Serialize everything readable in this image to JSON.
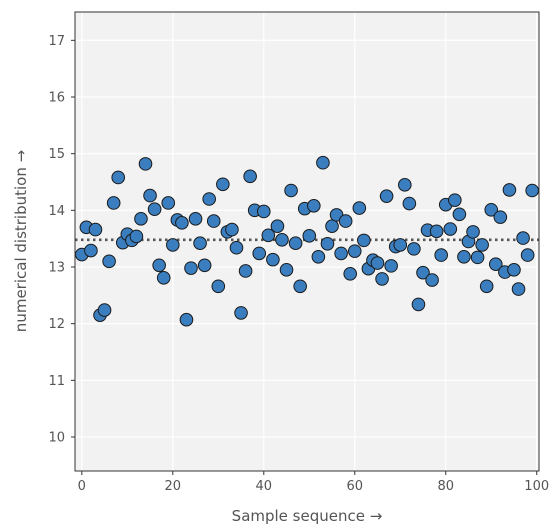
{
  "chart_data": {
    "type": "scatter",
    "title": "",
    "xlabel": "Sample sequence →",
    "ylabel": "numerical distribution →",
    "xlim": [
      -1.5,
      100.5
    ],
    "ylim": [
      9.4,
      17.5
    ],
    "xticks": [
      0,
      20,
      40,
      60,
      80,
      100
    ],
    "yticks": [
      10,
      11,
      12,
      13,
      14,
      15,
      16,
      17
    ],
    "grid": true,
    "legend": "none",
    "reference_line": {
      "y": 13.48,
      "style": "dotted",
      "color": "#555555"
    },
    "marker_color": "#3a7ebf",
    "marker_edge_color": "#1a1a1a",
    "background_color": "#f2f2f2",
    "points": [
      [
        0,
        13.22
      ],
      [
        1,
        13.7
      ],
      [
        2,
        13.29
      ],
      [
        3,
        13.66
      ],
      [
        4,
        12.15
      ],
      [
        5,
        12.24
      ],
      [
        6,
        13.1
      ],
      [
        7,
        14.13
      ],
      [
        8,
        14.58
      ],
      [
        9,
        13.43
      ],
      [
        10,
        13.58
      ],
      [
        11,
        13.47
      ],
      [
        12,
        13.54
      ],
      [
        13,
        13.85
      ],
      [
        14,
        14.82
      ],
      [
        15,
        14.26
      ],
      [
        16,
        14.02
      ],
      [
        17,
        13.03
      ],
      [
        18,
        12.81
      ],
      [
        19,
        14.13
      ],
      [
        20,
        13.39
      ],
      [
        21,
        13.83
      ],
      [
        22,
        13.78
      ],
      [
        23,
        12.07
      ],
      [
        24,
        12.98
      ],
      [
        25,
        13.85
      ],
      [
        26,
        13.42
      ],
      [
        27,
        13.03
      ],
      [
        28,
        14.2
      ],
      [
        29,
        13.81
      ],
      [
        30,
        12.66
      ],
      [
        31,
        14.46
      ],
      [
        32,
        13.62
      ],
      [
        33,
        13.66
      ],
      [
        34,
        13.34
      ],
      [
        35,
        12.19
      ],
      [
        36,
        12.93
      ],
      [
        37,
        14.6
      ],
      [
        38,
        14.0
      ],
      [
        39,
        13.24
      ],
      [
        40,
        13.98
      ],
      [
        41,
        13.56
      ],
      [
        42,
        13.13
      ],
      [
        43,
        13.72
      ],
      [
        44,
        13.48
      ],
      [
        45,
        12.95
      ],
      [
        46,
        14.35
      ],
      [
        47,
        13.42
      ],
      [
        48,
        12.66
      ],
      [
        49,
        14.03
      ],
      [
        50,
        13.55
      ],
      [
        51,
        14.08
      ],
      [
        52,
        13.18
      ],
      [
        53,
        14.84
      ],
      [
        54,
        13.41
      ],
      [
        55,
        13.72
      ],
      [
        56,
        13.92
      ],
      [
        57,
        13.24
      ],
      [
        58,
        13.81
      ],
      [
        59,
        12.88
      ],
      [
        60,
        13.28
      ],
      [
        61,
        14.04
      ],
      [
        62,
        13.47
      ],
      [
        63,
        12.97
      ],
      [
        64,
        13.12
      ],
      [
        65,
        13.07
      ],
      [
        66,
        12.79
      ],
      [
        67,
        14.25
      ],
      [
        68,
        13.02
      ],
      [
        69,
        13.36
      ],
      [
        70,
        13.39
      ],
      [
        71,
        14.45
      ],
      [
        72,
        14.12
      ],
      [
        73,
        13.32
      ],
      [
        74,
        12.34
      ],
      [
        75,
        12.9
      ],
      [
        76,
        13.65
      ],
      [
        77,
        12.77
      ],
      [
        78,
        13.63
      ],
      [
        79,
        13.21
      ],
      [
        80,
        14.1
      ],
      [
        81,
        13.67
      ],
      [
        82,
        14.18
      ],
      [
        83,
        13.93
      ],
      [
        84,
        13.18
      ],
      [
        85,
        13.45
      ],
      [
        86,
        13.62
      ],
      [
        87,
        13.17
      ],
      [
        88,
        13.39
      ],
      [
        89,
        12.66
      ],
      [
        90,
        14.01
      ],
      [
        91,
        13.05
      ],
      [
        92,
        13.88
      ],
      [
        93,
        12.91
      ],
      [
        94,
        14.36
      ],
      [
        95,
        12.95
      ],
      [
        96,
        12.61
      ],
      [
        97,
        13.51
      ],
      [
        98,
        13.21
      ],
      [
        99,
        14.35
      ]
    ]
  }
}
